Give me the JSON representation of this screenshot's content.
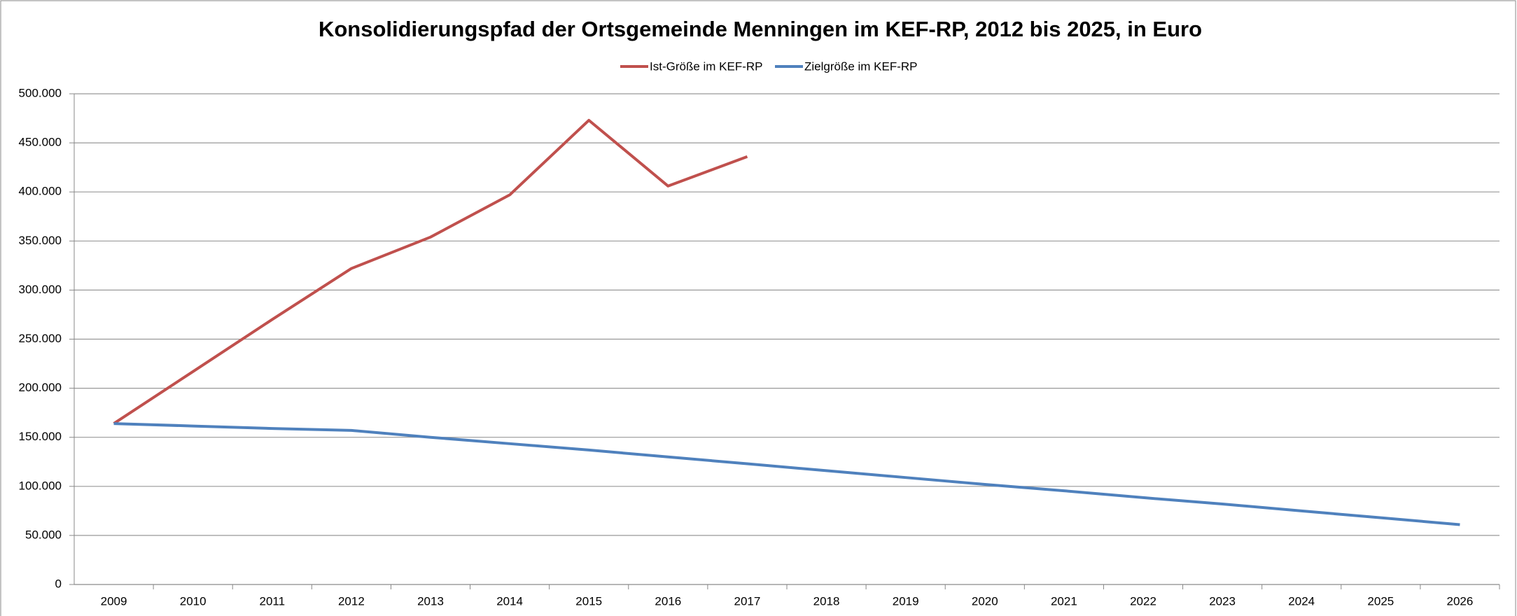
{
  "chart_data": {
    "type": "line",
    "title": "Konsolidierungspfad der Ortsgemeinde Menningen im KEF-RP, 2012 bis 2025, in Euro",
    "categories": [
      "2009",
      "2010",
      "2011",
      "2012",
      "2013",
      "2014",
      "2015",
      "2016",
      "2017",
      "2018",
      "2019",
      "2020",
      "2021",
      "2022",
      "2023",
      "2024",
      "2025",
      "2026"
    ],
    "series": [
      {
        "name": "Ist-Größe im KEF-RP",
        "color": "#c0504d",
        "values": [
          164000,
          217000,
          270000,
          322000,
          354000,
          397000,
          473000,
          406000,
          436000,
          null,
          null,
          null,
          null,
          null,
          null,
          null,
          null,
          null
        ]
      },
      {
        "name": "Zielgröße im KEF-RP",
        "color": "#4f81bd",
        "values": [
          164000,
          161500,
          159000,
          157000,
          150000,
          143500,
          137000,
          130000,
          123000,
          116000,
          109000,
          102000,
          95500,
          88500,
          82000,
          75000,
          68000,
          61000
        ]
      }
    ],
    "ylim": [
      0,
      500000
    ],
    "yticks": [
      0,
      {
        "value": 50000,
        "label": "50.000"
      },
      {
        "value": 100000,
        "label": "100.000"
      },
      {
        "value": 150000,
        "label": "150.000"
      },
      {
        "value": 200000,
        "label": "200.000"
      },
      {
        "value": 250000,
        "label": "250.000"
      },
      {
        "value": 300000,
        "label": "300.000"
      },
      {
        "value": 350000,
        "label": "350.000"
      },
      {
        "value": 400000,
        "label": "400.000"
      },
      {
        "value": 450000,
        "label": "450.000"
      },
      {
        "value": 500000,
        "label": "500.000"
      }
    ],
    "grid": true,
    "legend": "top"
  }
}
